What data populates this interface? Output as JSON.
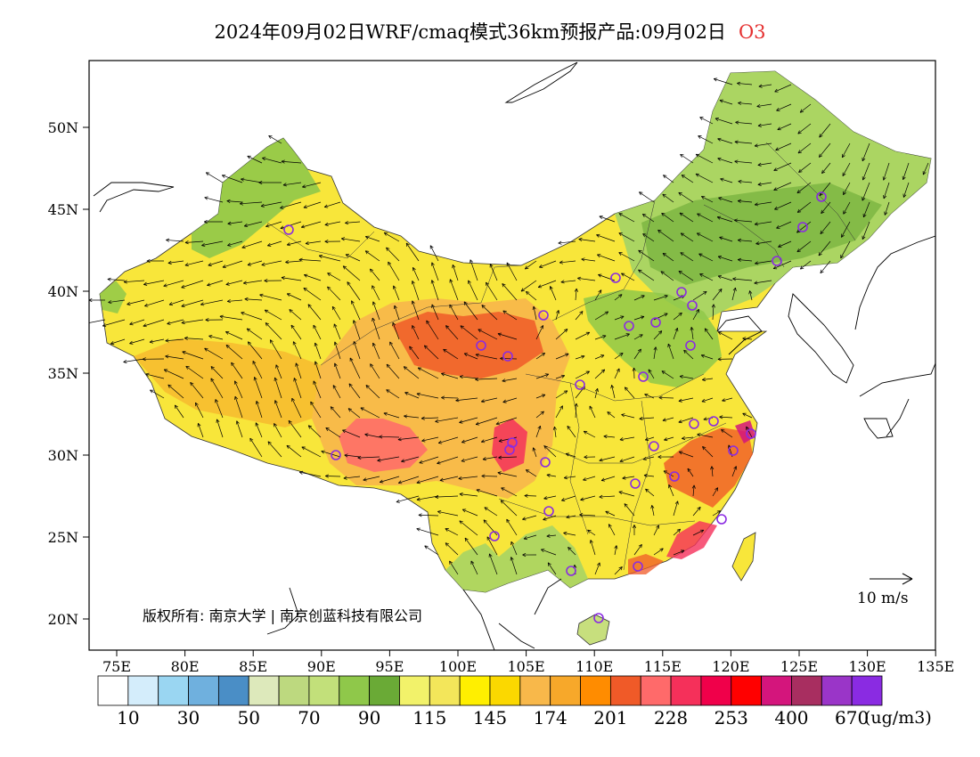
{
  "title": {
    "main": "2024年09月02日WRF/cmaq模式36km预报产品:09月02日",
    "pollutant": "O3"
  },
  "map": {
    "lat_labels": [
      "50N",
      "45N",
      "40N",
      "35N",
      "30N",
      "25N",
      "20N"
    ],
    "lon_labels": [
      "75E",
      "80E",
      "85E",
      "90E",
      "95E",
      "100E",
      "105E",
      "110E",
      "115E",
      "120E",
      "125E",
      "130E",
      "135E"
    ],
    "copyright": "版权所有: 南京大学 | 南京创蓝科技有限公司",
    "vector_scale_label": "10 m/s"
  },
  "legend": {
    "unit": "(ug/m3)",
    "labels": [
      "10",
      "30",
      "50",
      "70",
      "90",
      "115",
      "145",
      "174",
      "201",
      "228",
      "253",
      "400",
      "670"
    ],
    "colors": [
      "#ffffff",
      "#d4edfb",
      "#9ad6f2",
      "#6fb0de",
      "#4a8ec6",
      "#dde9bb",
      "#bdd97f",
      "#c2e07a",
      "#8fc84a",
      "#6aaa36",
      "#f2f26a",
      "#f3e65a",
      "#ffef00",
      "#fbd800",
      "#f8b84a",
      "#f7a82a",
      "#ff8c00",
      "#f05a28",
      "#ff6a6a",
      "#f5305a",
      "#f0004a",
      "#ff0000",
      "#d4157c",
      "#a82e60",
      "#9a35c8",
      "#8a2be2"
    ]
  },
  "stations": []
}
